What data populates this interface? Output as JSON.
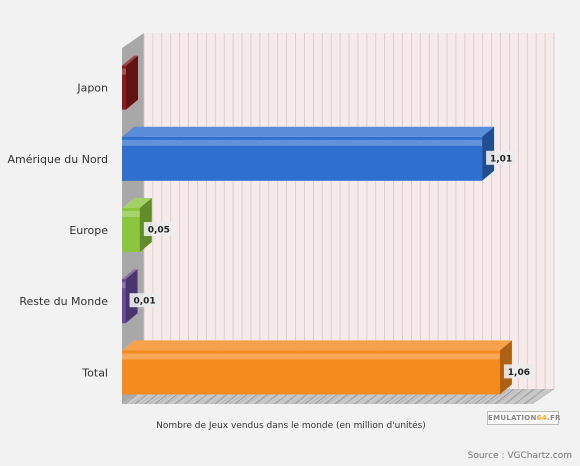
{
  "chart_data": {
    "type": "bar",
    "orientation": "horizontal",
    "categories": [
      "Japon",
      "Amérique du Nord",
      "Europe",
      "Reste du Monde",
      "Total"
    ],
    "values": [
      0.0,
      1.01,
      0.05,
      0.01,
      1.06
    ],
    "value_labels": [
      "",
      "1,01",
      "0,05",
      "0,01",
      "1,06"
    ],
    "colors": [
      "#8b1a1a",
      "#2f6fcf",
      "#8cc63f",
      "#6a4c9c",
      "#f58a1f"
    ],
    "xlabel": "Nombre de Jeux vendus dans le monde (en million d'unités)",
    "xlim": [
      0,
      1.15
    ],
    "grid": true,
    "legend": "none",
    "three_d": true
  },
  "source": "Source : VGChartz.com",
  "logo": {
    "main": "EMULATION",
    "accent": "64",
    "suffix": ".FR"
  }
}
